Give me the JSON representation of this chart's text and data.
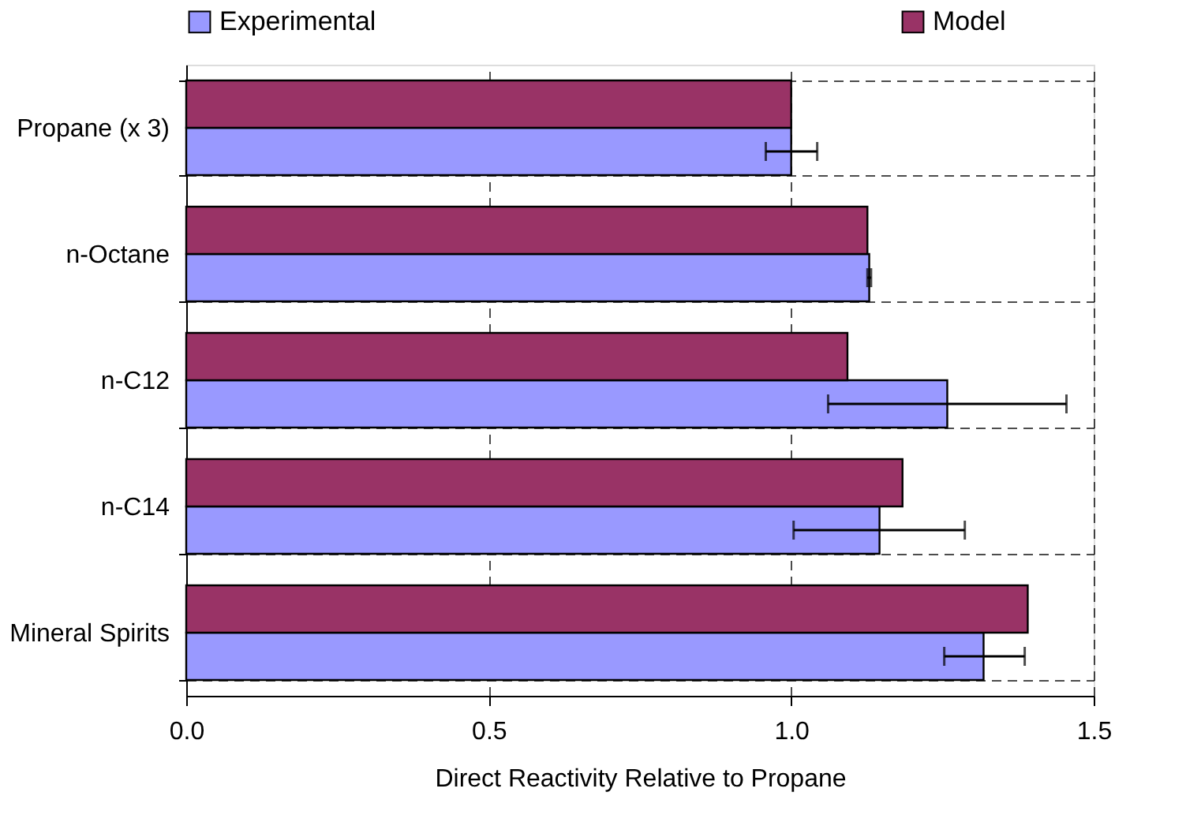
{
  "chart_data": {
    "type": "bar",
    "orientation": "horizontal",
    "xlabel": "Direct Reactivity Relative to Propane",
    "categories": [
      "Propane (x 3)",
      "n-Octane",
      "n-C12",
      "n-C14",
      "Mineral Spirits"
    ],
    "series": [
      {
        "name": "Experimental",
        "color": "#9999ff",
        "values": [
          1.0,
          1.129,
          1.258,
          1.146,
          1.318
        ],
        "errors": [
          [
            0.958,
            1.043
          ],
          [
            1.126,
            1.132
          ],
          [
            1.061,
            1.455
          ],
          [
            1.004,
            1.287
          ],
          [
            1.253,
            1.386
          ]
        ]
      },
      {
        "name": "Model",
        "color": "#993366",
        "values": [
          1.0,
          1.126,
          1.093,
          1.184,
          1.391
        ]
      }
    ],
    "xlim": [
      0,
      1.5
    ],
    "xticks": [
      {
        "value": 0,
        "label": "0.0"
      },
      {
        "value": 0.5,
        "label": "0.5"
      },
      {
        "value": 1,
        "label": "1.0"
      },
      {
        "value": 1.5,
        "label": "1.5"
      }
    ],
    "grid": true,
    "legend": "top"
  }
}
